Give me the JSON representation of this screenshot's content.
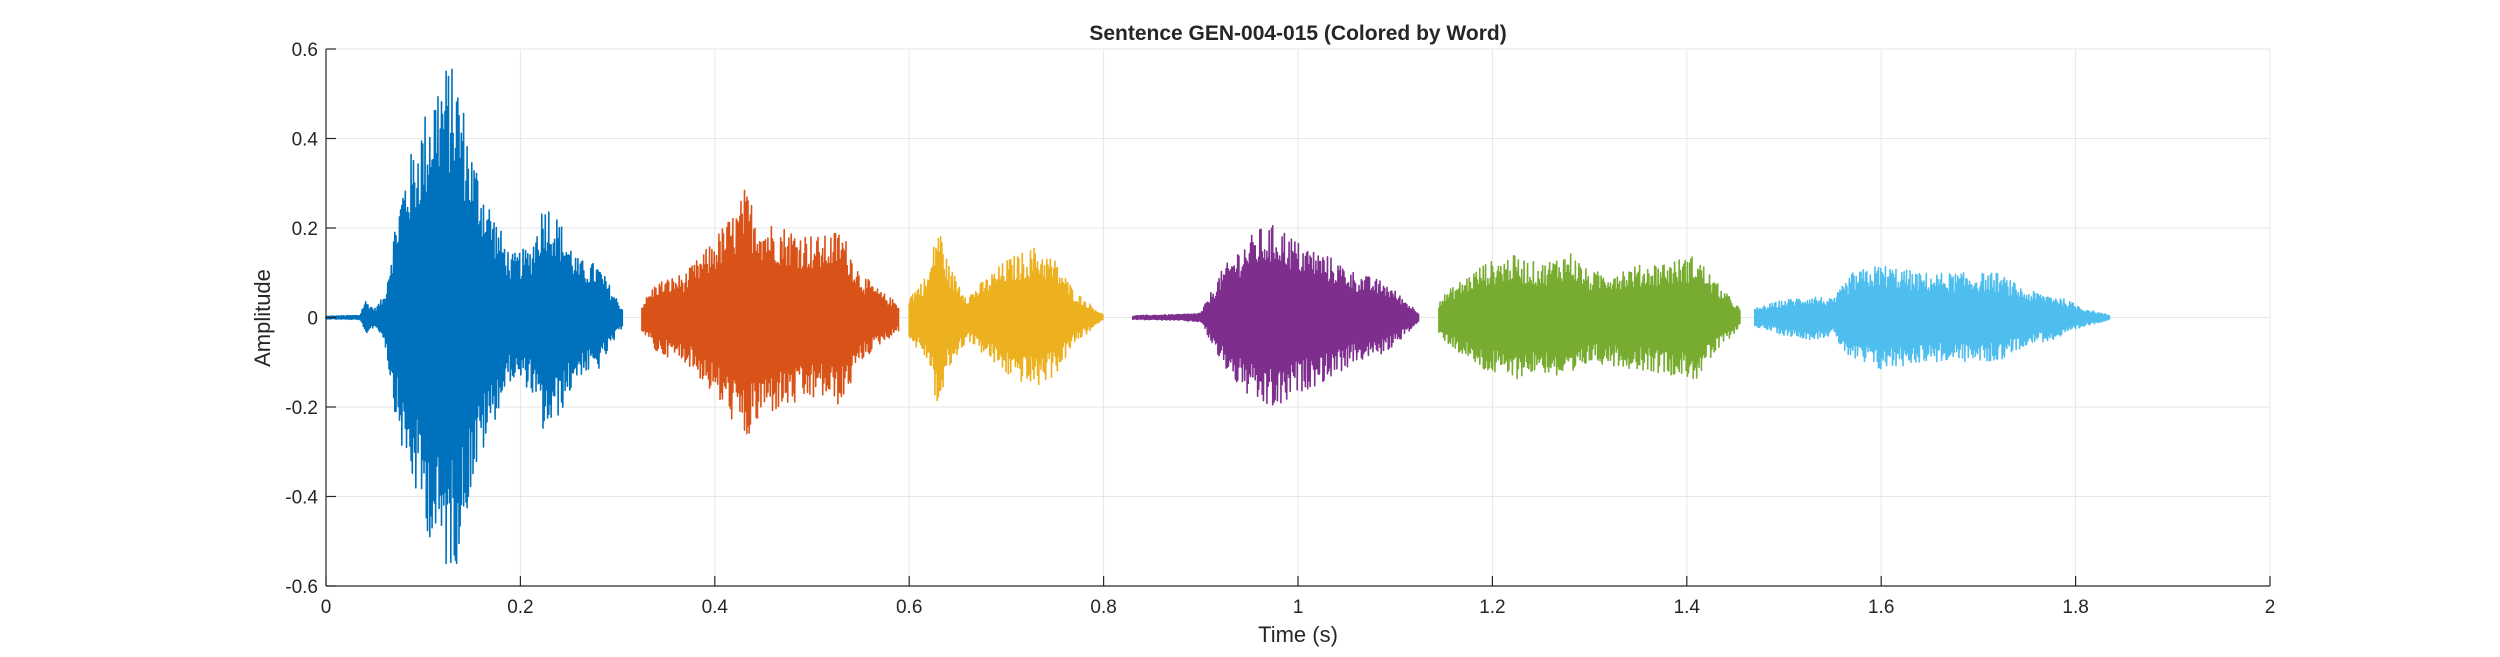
{
  "chart_data": {
    "type": "line",
    "title": "Sentence GEN-004-015 (Colored by Word)",
    "xlabel": "Time (s)",
    "ylabel": "Amplitude",
    "xlim": [
      0,
      2
    ],
    "ylim": [
      -0.6,
      0.6
    ],
    "xticks": [
      0,
      0.2,
      0.4,
      0.6,
      0.8,
      1,
      1.2,
      1.4,
      1.6,
      1.8,
      2
    ],
    "xtick_labels": [
      "0",
      "0.2",
      "0.4",
      "0.6",
      "0.8",
      "1",
      "1.2",
      "1.4",
      "1.6",
      "1.8",
      "2"
    ],
    "yticks": [
      -0.6,
      -0.4,
      -0.2,
      0,
      0.2,
      0.4,
      0.6
    ],
    "ytick_labels": [
      "-0.6",
      "-0.4",
      "-0.2",
      "0",
      "0.2",
      "0.4",
      "0.6"
    ],
    "grid": true,
    "series": [
      {
        "color": "#0072BD",
        "x_start": 0.0,
        "x_end": 0.305,
        "envelope": [
          [
            0.0,
            0.003
          ],
          [
            0.035,
            0.005
          ],
          [
            0.04,
            0.04
          ],
          [
            0.05,
            0.02
          ],
          [
            0.06,
            0.05
          ],
          [
            0.07,
            0.2
          ],
          [
            0.08,
            0.32
          ],
          [
            0.1,
            0.45
          ],
          [
            0.115,
            0.55
          ],
          [
            0.125,
            0.57
          ],
          [
            0.135,
            0.55
          ],
          [
            0.15,
            0.38
          ],
          [
            0.17,
            0.25
          ],
          [
            0.19,
            0.14
          ],
          [
            0.21,
            0.16
          ],
          [
            0.225,
            0.27
          ],
          [
            0.24,
            0.22
          ],
          [
            0.26,
            0.13
          ],
          [
            0.28,
            0.12
          ],
          [
            0.295,
            0.06
          ],
          [
            0.305,
            0.02
          ]
        ]
      },
      {
        "color": "#D95319",
        "x_start": 0.325,
        "x_end": 0.59,
        "envelope": [
          [
            0.325,
            0.03
          ],
          [
            0.34,
            0.08
          ],
          [
            0.37,
            0.1
          ],
          [
            0.39,
            0.15
          ],
          [
            0.41,
            0.21
          ],
          [
            0.425,
            0.25
          ],
          [
            0.43,
            0.29
          ],
          [
            0.45,
            0.22
          ],
          [
            0.48,
            0.2
          ],
          [
            0.51,
            0.18
          ],
          [
            0.53,
            0.2
          ],
          [
            0.55,
            0.1
          ],
          [
            0.57,
            0.06
          ],
          [
            0.59,
            0.03
          ]
        ]
      },
      {
        "color": "#EDB120",
        "x_start": 0.6,
        "x_end": 0.8,
        "envelope": [
          [
            0.6,
            0.05
          ],
          [
            0.62,
            0.1
          ],
          [
            0.63,
            0.22
          ],
          [
            0.64,
            0.12
          ],
          [
            0.66,
            0.05
          ],
          [
            0.68,
            0.09
          ],
          [
            0.7,
            0.13
          ],
          [
            0.73,
            0.16
          ],
          [
            0.75,
            0.13
          ],
          [
            0.77,
            0.06
          ],
          [
            0.8,
            0.005
          ]
        ]
      },
      {
        "color": "#7E2F8E",
        "x_start": 0.83,
        "x_end": 1.125,
        "envelope": [
          [
            0.83,
            0.004
          ],
          [
            0.88,
            0.007
          ],
          [
            0.9,
            0.01
          ],
          [
            0.92,
            0.1
          ],
          [
            0.94,
            0.16
          ],
          [
            0.96,
            0.2
          ],
          [
            0.98,
            0.21
          ],
          [
            1.0,
            0.17
          ],
          [
            1.03,
            0.14
          ],
          [
            1.06,
            0.1
          ],
          [
            1.09,
            0.08
          ],
          [
            1.11,
            0.04
          ],
          [
            1.125,
            0.01
          ]
        ]
      },
      {
        "color": "#77AC30",
        "x_start": 1.145,
        "x_end": 1.455,
        "envelope": [
          [
            1.145,
            0.04
          ],
          [
            1.16,
            0.07
          ],
          [
            1.19,
            0.12
          ],
          [
            1.22,
            0.14
          ],
          [
            1.25,
            0.12
          ],
          [
            1.28,
            0.15
          ],
          [
            1.3,
            0.1
          ],
          [
            1.33,
            0.11
          ],
          [
            1.36,
            0.12
          ],
          [
            1.39,
            0.13
          ],
          [
            1.41,
            0.14
          ],
          [
            1.43,
            0.08
          ],
          [
            1.455,
            0.02
          ]
        ]
      },
      {
        "color": "#4DBEEE",
        "x_start": 1.47,
        "x_end": 1.835,
        "envelope": [
          [
            1.47,
            0.02
          ],
          [
            1.5,
            0.04
          ],
          [
            1.53,
            0.05
          ],
          [
            1.55,
            0.04
          ],
          [
            1.57,
            0.1
          ],
          [
            1.6,
            0.12
          ],
          [
            1.64,
            0.1
          ],
          [
            1.68,
            0.1
          ],
          [
            1.72,
            0.1
          ],
          [
            1.75,
            0.06
          ],
          [
            1.78,
            0.05
          ],
          [
            1.81,
            0.02
          ],
          [
            1.835,
            0.005
          ]
        ]
      }
    ]
  }
}
